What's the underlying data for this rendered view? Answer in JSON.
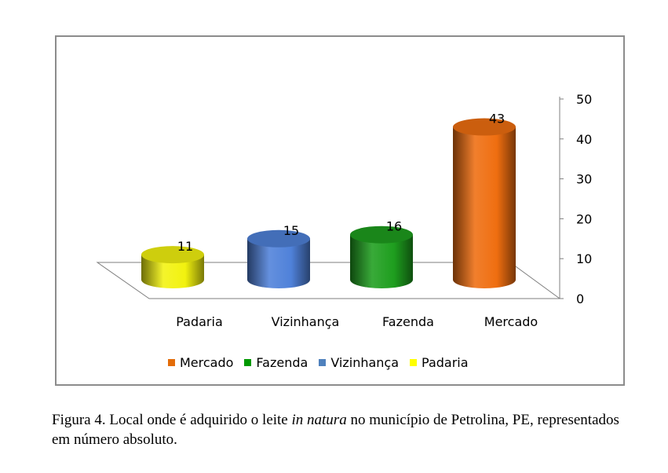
{
  "chart_data": {
    "type": "bar",
    "style": "3d-cylinder",
    "categories": [
      "Padaria",
      "Vizinhança",
      "Fazenda",
      "Mercado"
    ],
    "values": [
      11,
      15,
      16,
      43
    ],
    "colors": [
      "#f2f20f",
      "#4f81d9",
      "#1e9e1e",
      "#ef6e10"
    ],
    "ylim": [
      0,
      50
    ],
    "yticks": [
      "0",
      "10",
      "20",
      "30",
      "40",
      "50"
    ],
    "legend": {
      "position": "bottom",
      "entries": [
        {
          "label": "Mercado",
          "color": "#e36c09"
        },
        {
          "label": "Fazenda",
          "color": "#009900"
        },
        {
          "label": "Vizinhança",
          "color": "#4f81bd"
        },
        {
          "label": "Padaria",
          "color": "#ffff00"
        }
      ]
    }
  },
  "caption": {
    "prefix": "Figura 4. Local onde é adquirido o leite ",
    "italic": "in natura",
    "suffix": " no município de Petrolina, PE, representados em número absoluto."
  }
}
